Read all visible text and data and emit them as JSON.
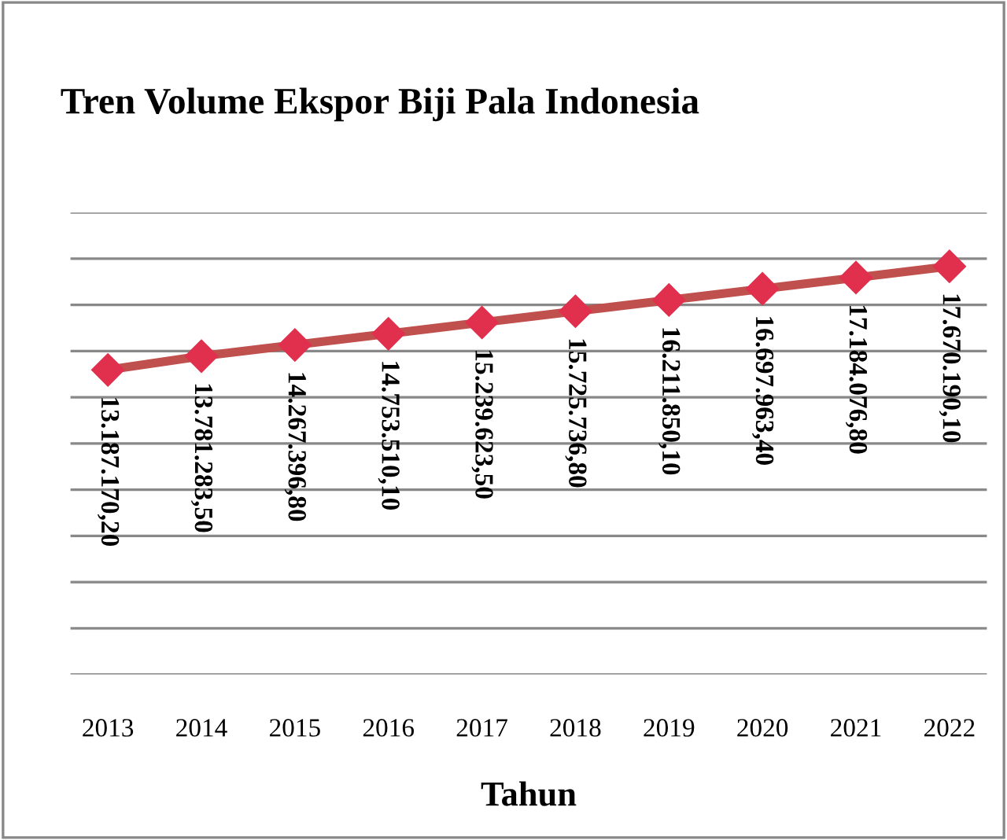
{
  "chart_data": {
    "type": "line",
    "title": "Tren Volume Ekspor Biji Pala Indonesia",
    "xlabel": "Tahun",
    "categories": [
      "2013",
      "2014",
      "2015",
      "2016",
      "2017",
      "2018",
      "2019",
      "2020",
      "2021",
      "2022"
    ],
    "series": [
      {
        "color": "#c0504d",
        "values": [
          13187170.2,
          13781283.5,
          14267396.8,
          14753510.1,
          15239623.5,
          15725736.8,
          16211850.1,
          16697963.4,
          17184076.8,
          17670190.1
        ],
        "value_labels": [
          "13.187.170,20",
          "13.781.283,50",
          "14.267.396,80",
          "14.753.510,10",
          "15.239.623,50",
          "15.725.736,80",
          "16.211.850,10",
          "16.697.963,40",
          "17.184.076,80",
          "17.670.190,10"
        ]
      }
    ],
    "ylim": [
      0,
      20000000
    ],
    "yticks": [
      {
        "value": 0,
        "label": null
      },
      {
        "value": 2000000,
        "label": null
      },
      {
        "value": 4000000,
        "label": null
      },
      {
        "value": 6000000,
        "label": null
      },
      {
        "value": 8000000,
        "label": null
      },
      {
        "value": 10000000,
        "label": null
      },
      {
        "value": 12000000,
        "label": null
      },
      {
        "value": 14000000,
        "label": null
      },
      {
        "value": 16000000,
        "label": null
      },
      {
        "value": 18000000,
        "label": null
      },
      {
        "value": 20000000,
        "label": null
      }
    ],
    "grid": "y",
    "marker": "diamond",
    "line_style": "solid",
    "legend": false,
    "tick_labels": "x"
  }
}
